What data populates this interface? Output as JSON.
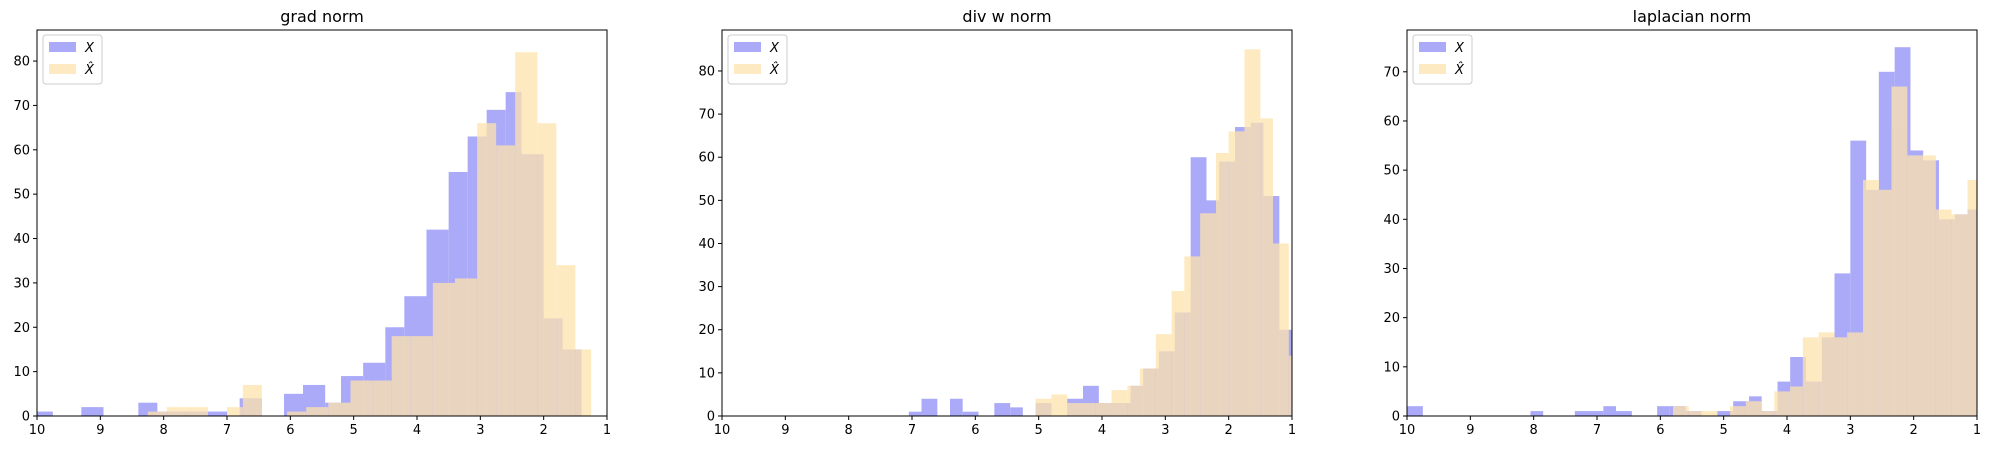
{
  "chart_data": [
    {
      "type": "bar",
      "title": "grad norm",
      "xlabel": "",
      "ylabel": "",
      "xlim": [
        10,
        1
      ],
      "ylim": [
        0,
        87
      ],
      "xticks": [
        10,
        9,
        8,
        7,
        6,
        5,
        4,
        3,
        2,
        1
      ],
      "yticks": [
        0,
        10,
        20,
        30,
        40,
        50,
        60,
        70,
        80
      ],
      "legend": {
        "placement": "top-left",
        "entries": [
          "X",
          "X̂"
        ]
      },
      "grid": false,
      "series": [
        {
          "name": "X",
          "color": "#aaaaf8",
          "bins": [
            [
              10.0,
              9.75,
              1
            ],
            [
              9.3,
              8.95,
              2
            ],
            [
              8.4,
              8.1,
              3
            ],
            [
              8.1,
              7.7,
              1
            ],
            [
              7.7,
              7.3,
              1
            ],
            [
              7.3,
              7.0,
              1
            ],
            [
              6.8,
              6.45,
              4
            ],
            [
              6.1,
              5.8,
              5
            ],
            [
              5.8,
              5.45,
              7
            ],
            [
              5.45,
              5.2,
              3
            ],
            [
              5.2,
              4.85,
              9
            ],
            [
              4.85,
              4.5,
              12
            ],
            [
              4.5,
              4.2,
              20
            ],
            [
              4.2,
              3.85,
              27
            ],
            [
              3.85,
              3.5,
              42
            ],
            [
              3.5,
              3.2,
              55
            ],
            [
              3.2,
              2.9,
              63
            ],
            [
              2.9,
              2.6,
              69
            ],
            [
              2.6,
              2.35,
              73
            ],
            [
              2.35,
              2.0,
              59
            ],
            [
              2.0,
              1.7,
              22
            ],
            [
              1.7,
              1.4,
              15
            ]
          ]
        },
        {
          "name": "X̂",
          "color": "#fee3ad",
          "bins": [
            [
              8.25,
              7.95,
              1
            ],
            [
              7.95,
              7.65,
              2
            ],
            [
              7.65,
              7.3,
              2
            ],
            [
              7.0,
              6.75,
              2
            ],
            [
              6.75,
              6.45,
              7
            ],
            [
              6.05,
              5.75,
              1
            ],
            [
              5.75,
              5.4,
              2
            ],
            [
              5.4,
              5.05,
              3
            ],
            [
              5.05,
              4.7,
              8
            ],
            [
              4.7,
              4.4,
              8
            ],
            [
              4.4,
              4.1,
              18
            ],
            [
              4.1,
              3.75,
              18
            ],
            [
              3.75,
              3.4,
              30
            ],
            [
              3.4,
              3.05,
              31
            ],
            [
              3.05,
              2.75,
              66
            ],
            [
              2.75,
              2.45,
              61
            ],
            [
              2.45,
              2.1,
              82
            ],
            [
              2.1,
              1.8,
              66
            ],
            [
              1.8,
              1.5,
              34
            ],
            [
              1.5,
              1.25,
              15
            ]
          ]
        }
      ]
    },
    {
      "type": "bar",
      "title": "div w norm",
      "xlabel": "",
      "ylabel": "",
      "xlim": [
        10,
        1
      ],
      "ylim": [
        0,
        89.5
      ],
      "xticks": [
        10,
        9,
        8,
        7,
        6,
        5,
        4,
        3,
        2,
        1
      ],
      "yticks": [
        0,
        10,
        20,
        30,
        40,
        50,
        60,
        70,
        80
      ],
      "legend": {
        "placement": "top-left",
        "entries": [
          "X",
          "X̂"
        ]
      },
      "grid": false,
      "series": [
        {
          "name": "X",
          "color": "#aaaaf8",
          "bins": [
            [
              7.05,
              6.85,
              1
            ],
            [
              6.85,
              6.6,
              4
            ],
            [
              6.4,
              6.2,
              4
            ],
            [
              6.2,
              5.95,
              1
            ],
            [
              5.7,
              5.45,
              3
            ],
            [
              5.45,
              5.25,
              2
            ],
            [
              5.05,
              4.8,
              3
            ],
            [
              4.55,
              4.3,
              4
            ],
            [
              4.3,
              4.05,
              7
            ],
            [
              4.05,
              3.8,
              3
            ],
            [
              3.8,
              3.55,
              3
            ],
            [
              3.55,
              3.35,
              7
            ],
            [
              3.35,
              3.1,
              11
            ],
            [
              3.1,
              2.85,
              15
            ],
            [
              2.85,
              2.6,
              24
            ],
            [
              2.6,
              2.35,
              60
            ],
            [
              2.35,
              2.15,
              50
            ],
            [
              2.15,
              1.9,
              59
            ],
            [
              1.9,
              1.65,
              67
            ],
            [
              1.65,
              1.45,
              68
            ],
            [
              1.45,
              1.2,
              51
            ],
            [
              1.2,
              1.0,
              20
            ]
          ]
        },
        {
          "name": "X̂",
          "color": "#fee3ad",
          "bins": [
            [
              5.05,
              4.8,
              4
            ],
            [
              4.8,
              4.55,
              5
            ],
            [
              4.55,
              4.3,
              3
            ],
            [
              4.3,
              4.1,
              3
            ],
            [
              4.1,
              3.85,
              3
            ],
            [
              3.85,
              3.6,
              6
            ],
            [
              3.6,
              3.4,
              7
            ],
            [
              3.4,
              3.15,
              11
            ],
            [
              3.15,
              2.9,
              19
            ],
            [
              2.9,
              2.7,
              29
            ],
            [
              2.7,
              2.45,
              37
            ],
            [
              2.45,
              2.2,
              47
            ],
            [
              2.2,
              2.0,
              61
            ],
            [
              2.0,
              1.75,
              66
            ],
            [
              1.75,
              1.5,
              85
            ],
            [
              1.5,
              1.3,
              69
            ],
            [
              1.3,
              1.05,
              40
            ],
            [
              1.05,
              1.0,
              14
            ]
          ]
        }
      ]
    },
    {
      "type": "bar",
      "title": "laplacian norm",
      "xlabel": "",
      "ylabel": "",
      "xlim": [
        10,
        1
      ],
      "ylim": [
        0,
        78.5
      ],
      "xticks": [
        10,
        9,
        8,
        7,
        6,
        5,
        4,
        3,
        2,
        1
      ],
      "yticks": [
        0,
        10,
        20,
        30,
        40,
        50,
        60,
        70
      ],
      "legend": {
        "placement": "top-left",
        "entries": [
          "X",
          "X̂"
        ]
      },
      "grid": false,
      "series": [
        {
          "name": "X",
          "color": "#aaaaf8",
          "bins": [
            [
              10.0,
              9.75,
              2
            ],
            [
              8.05,
              7.85,
              1
            ],
            [
              7.35,
              7.15,
              1
            ],
            [
              7.15,
              6.9,
              1
            ],
            [
              6.9,
              6.7,
              2
            ],
            [
              6.7,
              6.45,
              1
            ],
            [
              6.05,
              5.85,
              2
            ],
            [
              5.85,
              5.6,
              2
            ],
            [
              5.6,
              5.35,
              1
            ],
            [
              5.1,
              4.85,
              1
            ],
            [
              4.85,
              4.6,
              3
            ],
            [
              4.6,
              4.4,
              4
            ],
            [
              4.4,
              4.15,
              1
            ],
            [
              4.15,
              3.95,
              7
            ],
            [
              3.95,
              3.7,
              12
            ],
            [
              3.7,
              3.45,
              7
            ],
            [
              3.45,
              3.25,
              16
            ],
            [
              3.25,
              3.0,
              29
            ],
            [
              3.0,
              2.75,
              56
            ],
            [
              2.75,
              2.55,
              46
            ],
            [
              2.55,
              2.3,
              70
            ],
            [
              2.3,
              2.05,
              75
            ],
            [
              2.05,
              1.85,
              54
            ],
            [
              1.85,
              1.6,
              52
            ],
            [
              1.6,
              1.35,
              40
            ],
            [
              1.35,
              1.15,
              41
            ],
            [
              1.15,
              1.0,
              42
            ]
          ]
        },
        {
          "name": "X̂",
          "color": "#fee3ad",
          "bins": [
            [
              5.8,
              5.55,
              2
            ],
            [
              5.55,
              5.35,
              1
            ],
            [
              5.35,
              5.1,
              1
            ],
            [
              4.9,
              4.65,
              2
            ],
            [
              4.65,
              4.4,
              3
            ],
            [
              4.4,
              4.2,
              1
            ],
            [
              4.2,
              3.95,
              5
            ],
            [
              3.95,
              3.75,
              6
            ],
            [
              3.75,
              3.5,
              16
            ],
            [
              3.5,
              3.25,
              17
            ],
            [
              3.25,
              3.05,
              16
            ],
            [
              3.05,
              2.8,
              17
            ],
            [
              2.8,
              2.55,
              48
            ],
            [
              2.55,
              2.35,
              46
            ],
            [
              2.35,
              2.1,
              67
            ],
            [
              2.1,
              1.85,
              53
            ],
            [
              1.85,
              1.65,
              53
            ],
            [
              1.65,
              1.4,
              42
            ],
            [
              1.4,
              1.15,
              41
            ],
            [
              1.15,
              1.0,
              48
            ]
          ]
        }
      ]
    }
  ]
}
